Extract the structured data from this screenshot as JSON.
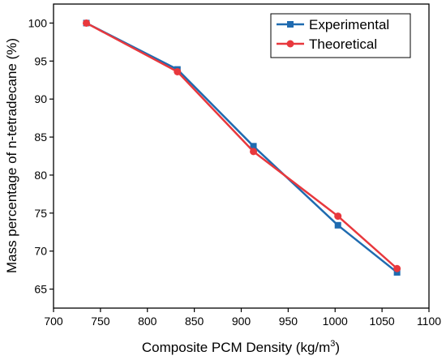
{
  "chart_data": {
    "type": "line",
    "xlabel": "Composite PCM Density (kg/m",
    "xlabel_sup": "3",
    "xlabel_suffix": ")",
    "ylabel": "Mass percentage of n-tetradecane (%)",
    "xlim": [
      700,
      1100
    ],
    "ylim": [
      62.5,
      102.5
    ],
    "x_ticks": [
      700,
      750,
      800,
      850,
      900,
      950,
      1000,
      1050,
      1100
    ],
    "y_ticks": [
      65,
      70,
      75,
      80,
      85,
      90,
      95,
      100
    ],
    "grid": false,
    "legend_position": "top-right",
    "series": [
      {
        "name": "Experimental",
        "color": "#1f6bb0",
        "marker": "square",
        "x": [
          735,
          832,
          913,
          1003,
          1066
        ],
        "y": [
          100,
          93.9,
          83.8,
          73.4,
          67.2
        ]
      },
      {
        "name": "Theoretical",
        "color": "#e8383d",
        "marker": "circle",
        "x": [
          735,
          832,
          913,
          1003,
          1066
        ],
        "y": [
          100,
          93.6,
          83.1,
          74.6,
          67.7
        ]
      }
    ]
  }
}
